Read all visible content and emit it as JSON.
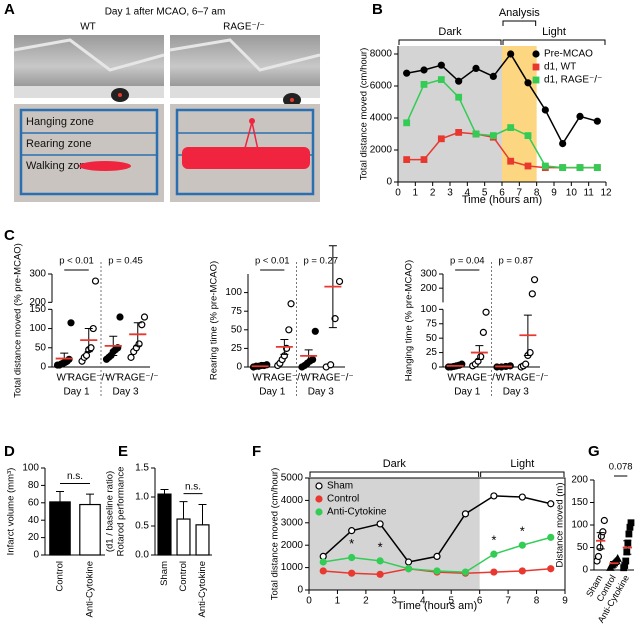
{
  "panel_a": {
    "panel": "A",
    "title": "Day 1 after MCAO, 6–7 am",
    "columns": [
      "WT",
      "RAGE⁻/⁻"
    ],
    "zones": [
      "Hanging zone",
      "Rearing zone",
      "Walking zone"
    ]
  },
  "chart_data": [
    {
      "type": "line",
      "panel": "B",
      "ylabel": "Total distance moved (cm/hour)",
      "xlabel": "Time (hours am)",
      "x": [
        0.5,
        1.5,
        2.5,
        3.5,
        4.5,
        5.5,
        6.5,
        7.5,
        8.5,
        9.5,
        10.5,
        11.5
      ],
      "xlim": [
        0,
        12
      ],
      "xticks": [
        0,
        1,
        2,
        3,
        4,
        5,
        6,
        7,
        8,
        9,
        10,
        11,
        12
      ],
      "ylim": [
        0,
        8500
      ],
      "yticks": [
        0,
        2000,
        4000,
        6000,
        8000
      ],
      "legend": "upper right",
      "frame": false,
      "regions": [
        {
          "from": 0,
          "to": 6,
          "color": "#d4d4d4"
        },
        {
          "from": 6,
          "to": 8,
          "color": "#fcd680"
        }
      ],
      "periods": [
        {
          "label": "Dark",
          "from": 0,
          "to": 6,
          "level": 0
        },
        {
          "label": "Light",
          "from": 6,
          "to": 12,
          "level": 0
        },
        {
          "label": "Analysis",
          "from": 6,
          "to": 8,
          "level": 1
        }
      ],
      "series": [
        {
          "name": "Pre-MCAO",
          "color": "#000000",
          "marker": "circle",
          "values": [
            6800,
            7000,
            7300,
            6300,
            7100,
            6600,
            8000,
            6200,
            4500,
            2400,
            4100,
            3800
          ]
        },
        {
          "name": "d1, WT",
          "color": "#e8382f",
          "marker": "square",
          "values": [
            1400,
            1400,
            2700,
            3100,
            3000,
            2800,
            1300,
            1000,
            900,
            900,
            900,
            900
          ]
        },
        {
          "name": "d1, RAGE⁻/⁻",
          "color": "#33cc55",
          "marker": "square",
          "values": [
            3700,
            6100,
            6400,
            5300,
            3000,
            2900,
            3400,
            2900,
            1000,
            900,
            900,
            900
          ]
        }
      ]
    },
    {
      "type": "dots",
      "panel": "C",
      "ylabel": "Total distance moved (% pre-MCAO)",
      "categories": [
        "WT",
        "RAGE⁻/⁻",
        "WT",
        "RAGE⁻/⁻"
      ],
      "groups": [
        "Day 1",
        "Day 3"
      ],
      "markers": [
        "circle",
        "open-circle",
        "circle",
        "open-circle"
      ],
      "mean_color": "#e8382f",
      "points": [
        [
          5,
          5,
          8,
          10,
          12,
          15,
          20,
          115
        ],
        [
          15,
          25,
          30,
          45,
          50,
          100,
          275
        ],
        [
          20,
          25,
          30,
          40,
          45,
          50,
          130
        ],
        [
          25,
          40,
          50,
          60,
          110,
          130
        ]
      ],
      "means": [
        22,
        70,
        55,
        85
      ],
      "sems": [
        14,
        30,
        25,
        30
      ],
      "ylim": [
        0,
        300
      ],
      "ybreak": [
        150,
        200
      ],
      "yticks": [
        0,
        50,
        100,
        150,
        200,
        300
      ],
      "comparisons": [
        {
          "pair": [
            0,
            1
          ],
          "label": "p < 0.01",
          "bar": true
        },
        {
          "pair": [
            2,
            3
          ],
          "label": "p = 0.45",
          "bar": false
        }
      ]
    },
    {
      "type": "dots",
      "ylabel": "Rearing time (% pre-MCAO)",
      "categories": [
        "WT",
        "RAGE⁻/⁻",
        "WT",
        "RAGE⁻/⁻"
      ],
      "groups": [
        "Day 1",
        "Day 3"
      ],
      "markers": [
        "circle",
        "open-circle",
        "circle",
        "open-circle"
      ],
      "mean_color": "#e8382f",
      "points": [
        [
          0,
          1,
          1,
          2,
          2,
          3
        ],
        [
          2,
          5,
          10,
          15,
          25,
          50,
          85
        ],
        [
          0,
          2,
          5,
          8,
          10,
          48
        ],
        [
          0,
          3,
          65,
          115
        ]
      ],
      "means": [
        1,
        27,
        15,
        108
      ],
      "sems": [
        1,
        10,
        8,
        55
      ],
      "ylim": [
        0,
        125
      ],
      "yticks": [
        0,
        25,
        50,
        75,
        100
      ],
      "comparisons": [
        {
          "pair": [
            0,
            1
          ],
          "label": "p < 0.01",
          "bar": true
        },
        {
          "pair": [
            2,
            3
          ],
          "label": "p = 0.27",
          "bar": false
        }
      ]
    },
    {
      "type": "dots",
      "ylabel": "Hanging time (% pre-MCAO)",
      "categories": [
        "WT",
        "RAGE⁻/⁻",
        "WT",
        "RAGE⁻/⁻"
      ],
      "groups": [
        "Day 1",
        "Day 3"
      ],
      "markers": [
        "circle",
        "open-circle",
        "circle",
        "open-circle"
      ],
      "mean_color": "#e8382f",
      "points": [
        [
          0,
          0,
          1,
          2,
          3,
          5
        ],
        [
          2,
          5,
          10,
          18,
          60,
          95
        ],
        [
          0,
          0,
          1,
          2
        ],
        [
          0,
          2,
          5,
          20,
          25,
          160,
          260
        ]
      ],
      "means": [
        2,
        25,
        1,
        55
      ],
      "sems": [
        1,
        12,
        1,
        35
      ],
      "ylim": [
        0,
        300
      ],
      "ybreak": [
        100,
        100
      ],
      "yticks": [
        0,
        25,
        50,
        75,
        100,
        200,
        300
      ],
      "comparisons": [
        {
          "pair": [
            0,
            1
          ],
          "label": "p = 0.04",
          "bar": true
        },
        {
          "pair": [
            2,
            3
          ],
          "label": "p = 0.87",
          "bar": false
        }
      ]
    },
    {
      "type": "bar",
      "panel": "D",
      "ylabel": [
        "Infarct volume (mm³)"
      ],
      "categories": [
        "Control",
        "Anti-Cytokine"
      ],
      "values": [
        61,
        58
      ],
      "errors": [
        12,
        12
      ],
      "colors": [
        "#000000",
        "#ffffff"
      ],
      "ylim": [
        0,
        100
      ],
      "yticks": [
        0,
        20,
        40,
        60,
        80,
        100
      ],
      "comparisons": [
        {
          "pair": [
            0,
            1
          ],
          "label": "n.s.",
          "bar": true
        }
      ]
    },
    {
      "type": "bar",
      "panel": "E",
      "ylabel": [
        "Rotarod performance",
        "(d1 / baseline ratio)"
      ],
      "categories": [
        "Sham",
        "Control",
        "Anti-Cytokine"
      ],
      "values": [
        1.05,
        0.62,
        0.52
      ],
      "errors": [
        0.08,
        0.3,
        0.35
      ],
      "colors": [
        "#000000",
        "#ffffff",
        "#ffffff"
      ],
      "ylim": [
        0,
        1.5
      ],
      "yticks": [
        {
          "value": 0,
          "label": "0.0"
        },
        0.5,
        {
          "value": 1,
          "label": "1.0"
        },
        1.5
      ],
      "comparisons": [
        {
          "pair": [
            1,
            2
          ],
          "label": "n.s.",
          "bar": true
        }
      ]
    },
    {
      "type": "line",
      "panel": "F",
      "ylabel": "Total distance moved (cm/hour)",
      "xlabel": "Time (hours am)",
      "x": [
        0.5,
        1.5,
        2.5,
        3.5,
        4.5,
        5.5,
        6.5,
        7.5,
        8.5
      ],
      "xlim": [
        0,
        9
      ],
      "xticks": [
        0,
        1,
        2,
        3,
        4,
        5,
        6,
        7,
        8,
        9
      ],
      "ylim": [
        0,
        5000
      ],
      "yticks": [
        0,
        1000,
        2000,
        3000,
        4000,
        5000
      ],
      "legend": "upper left",
      "frame": true,
      "regions": [
        {
          "from": 0,
          "to": 6,
          "color": "#d4d4d4"
        }
      ],
      "periods": [
        {
          "label": "Dark",
          "from": 0,
          "to": 6,
          "level": 0
        },
        {
          "label": "Light",
          "from": 6,
          "to": 9,
          "level": 0
        }
      ],
      "significance": {
        "label": "*",
        "series": 2,
        "indices": [
          1,
          2,
          6,
          7
        ]
      },
      "series": [
        {
          "name": "Sham",
          "color": "#000000",
          "marker": "open-circle",
          "values": [
            1500,
            2650,
            2950,
            1250,
            1500,
            3400,
            4200,
            4150,
            3850
          ]
        },
        {
          "name": "Control",
          "color": "#e8382f",
          "marker": "circle",
          "values": [
            850,
            750,
            700,
            950,
            800,
            750,
            800,
            850,
            950
          ]
        },
        {
          "name": "Anti-Cytokine",
          "color": "#33cc55",
          "marker": "circle",
          "values": [
            1250,
            1450,
            1300,
            950,
            850,
            800,
            1600,
            2000,
            2350
          ]
        }
      ]
    },
    {
      "type": "dots",
      "panel": "G",
      "ylabel": "Distance moved (m)",
      "categories": [
        "Sham",
        "Control",
        "Anti-Cytokine"
      ],
      "markers": [
        "open-circle",
        "triangle",
        "square"
      ],
      "mean_color": "#e8382f",
      "points": [
        [
          20,
          30,
          50,
          75,
          85,
          110
        ],
        [
          5,
          10,
          12,
          15,
          18,
          20,
          25
        ],
        [
          5,
          10,
          20,
          40,
          60,
          80,
          95,
          105
        ]
      ],
      "means": [
        65,
        15,
        50
      ],
      "sems": [
        18,
        4,
        15
      ],
      "ylim": [
        0,
        200
      ],
      "yticks": [
        0,
        50,
        100,
        150,
        200
      ],
      "comparisons": [
        {
          "pair": [
            1,
            2
          ],
          "label": "0.078",
          "bar": true
        }
      ]
    }
  ]
}
